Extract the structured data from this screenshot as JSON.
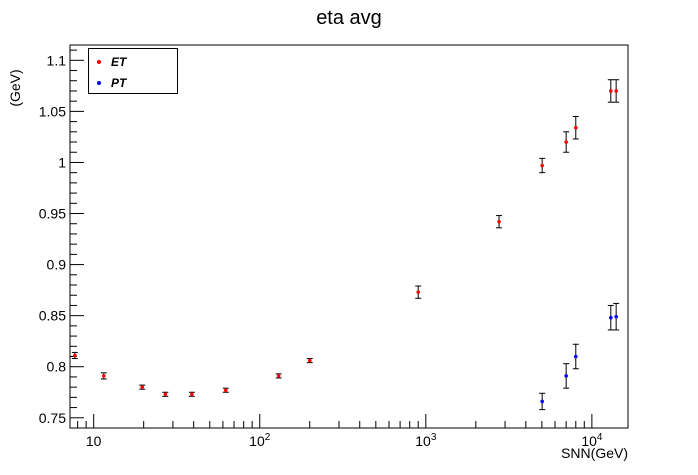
{
  "chart_data": {
    "type": "scatter",
    "title": "eta avg",
    "xlabel": "SNN(GeV)",
    "ylabel": "(GeV)",
    "xscale": "log",
    "xlim": [
      7.2,
      16500
    ],
    "ylim": [
      0.74,
      1.115
    ],
    "x_tick_labels": [
      "10",
      "10^2",
      "10^3",
      "10^4"
    ],
    "y_ticks": [
      0.75,
      0.8,
      0.85,
      0.9,
      0.95,
      1,
      1.05,
      1.1
    ],
    "y_tick_labels": [
      "0.75",
      "0.8",
      "0.85",
      "0.9",
      "0.95",
      "1",
      "1.05",
      "1.1"
    ],
    "legend_position": "top-left",
    "series": [
      {
        "name": "ET",
        "color": "#ff0000",
        "points": [
          {
            "x": 7.7,
            "y": 0.811,
            "err": 0.003
          },
          {
            "x": 11.5,
            "y": 0.791,
            "err": 0.003
          },
          {
            "x": 19.6,
            "y": 0.78,
            "err": 0.002
          },
          {
            "x": 27,
            "y": 0.773,
            "err": 0.002
          },
          {
            "x": 39,
            "y": 0.773,
            "err": 0.002
          },
          {
            "x": 62.4,
            "y": 0.777,
            "err": 0.002
          },
          {
            "x": 130,
            "y": 0.791,
            "err": 0.002
          },
          {
            "x": 200,
            "y": 0.806,
            "err": 0.002
          },
          {
            "x": 900,
            "y": 0.873,
            "err": 0.006
          },
          {
            "x": 2760,
            "y": 0.942,
            "err": 0.006
          },
          {
            "x": 5020,
            "y": 0.997,
            "err": 0.007
          },
          {
            "x": 7000,
            "y": 1.02,
            "err": 0.01
          },
          {
            "x": 8000,
            "y": 1.034,
            "err": 0.011
          },
          {
            "x": 13000,
            "y": 1.07,
            "err": 0.011
          },
          {
            "x": 14000,
            "y": 1.07,
            "err": 0.011
          }
        ]
      },
      {
        "name": "PT",
        "color": "#0000ff",
        "points": [
          {
            "x": 5020,
            "y": 0.766,
            "err": 0.008
          },
          {
            "x": 7000,
            "y": 0.791,
            "err": 0.012
          },
          {
            "x": 8000,
            "y": 0.81,
            "err": 0.012
          },
          {
            "x": 13000,
            "y": 0.848,
            "err": 0.012
          },
          {
            "x": 14000,
            "y": 0.849,
            "err": 0.013
          }
        ]
      }
    ]
  }
}
